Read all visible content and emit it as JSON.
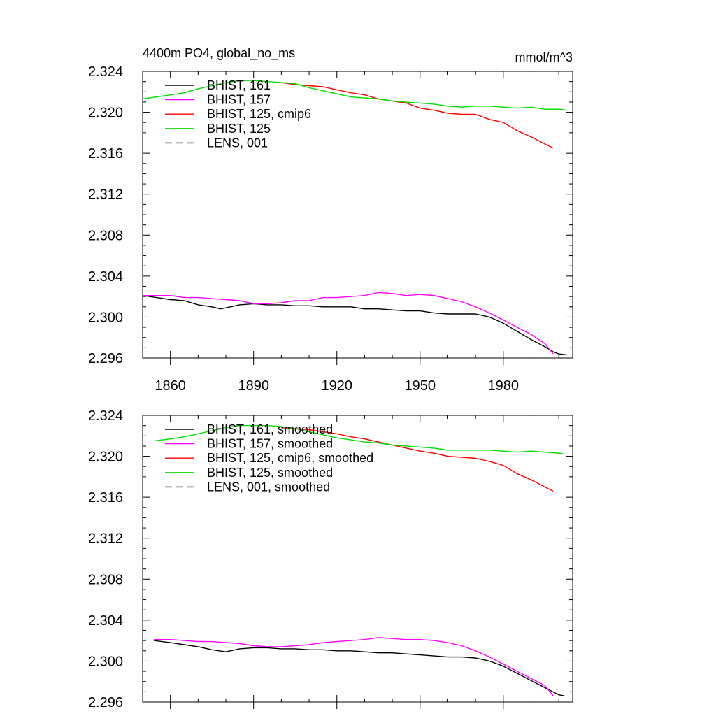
{
  "colors": {
    "black": "#000000",
    "magenta": "#ff00ff",
    "red": "#ff0000",
    "green": "#00dd00"
  },
  "chart_data": [
    {
      "type": "line",
      "title": "4400m PO4, global_no_ms",
      "units": "mmol/m^3",
      "xlim": [
        1850,
        2005
      ],
      "ylim": [
        2.296,
        2.324
      ],
      "x_ticks": [
        "1860",
        "1890",
        "1920",
        "1950",
        "1980"
      ],
      "y_ticks": [
        "2.324",
        "2.320",
        "2.316",
        "2.312",
        "2.308",
        "2.304",
        "2.300",
        "2.296"
      ],
      "legend_position": "top-left",
      "series": [
        {
          "name": "BHIST, 161",
          "color": "#000000",
          "dash": "solid",
          "points": [
            [
              1850,
              2.3021
            ],
            [
              1855,
              2.3019
            ],
            [
              1860,
              2.3017
            ],
            [
              1865,
              2.3016
            ],
            [
              1870,
              2.3012
            ],
            [
              1875,
              2.301
            ],
            [
              1878,
              2.3008
            ],
            [
              1880,
              2.3009
            ],
            [
              1885,
              2.3012
            ],
            [
              1890,
              2.3013
            ],
            [
              1895,
              2.3012
            ],
            [
              1900,
              2.3012
            ],
            [
              1905,
              2.3011
            ],
            [
              1910,
              2.3011
            ],
            [
              1915,
              2.301
            ],
            [
              1920,
              2.301
            ],
            [
              1925,
              2.301
            ],
            [
              1930,
              2.3008
            ],
            [
              1935,
              2.3008
            ],
            [
              1940,
              2.3007
            ],
            [
              1945,
              2.3006
            ],
            [
              1950,
              2.3006
            ],
            [
              1955,
              2.3004
            ],
            [
              1960,
              2.3003
            ],
            [
              1965,
              2.3003
            ],
            [
              1970,
              2.3003
            ],
            [
              1975,
              2.3
            ],
            [
              1980,
              2.2994
            ],
            [
              1985,
              2.2986
            ],
            [
              1990,
              2.2978
            ],
            [
              1995,
              2.2971
            ],
            [
              1998,
              2.2966
            ],
            [
              2000,
              2.2964
            ],
            [
              2003,
              2.2963
            ]
          ]
        },
        {
          "name": "BHIST, 157",
          "color": "#ff00ff",
          "dash": "solid",
          "points": [
            [
              1850,
              2.3021
            ],
            [
              1855,
              2.3021
            ],
            [
              1860,
              2.3021
            ],
            [
              1865,
              2.3019
            ],
            [
              1870,
              2.3019
            ],
            [
              1875,
              2.3018
            ],
            [
              1880,
              2.3017
            ],
            [
              1885,
              2.3016
            ],
            [
              1890,
              2.3013
            ],
            [
              1895,
              2.3013
            ],
            [
              1900,
              2.3014
            ],
            [
              1905,
              2.3016
            ],
            [
              1910,
              2.3016
            ],
            [
              1915,
              2.3019
            ],
            [
              1920,
              2.3019
            ],
            [
              1925,
              2.302
            ],
            [
              1930,
              2.3021
            ],
            [
              1935,
              2.3024
            ],
            [
              1940,
              2.3023
            ],
            [
              1945,
              2.3021
            ],
            [
              1950,
              2.3022
            ],
            [
              1955,
              2.3021
            ],
            [
              1960,
              2.3018
            ],
            [
              1965,
              2.3015
            ],
            [
              1970,
              2.301
            ],
            [
              1975,
              2.3004
            ],
            [
              1980,
              2.2997
            ],
            [
              1985,
              2.299
            ],
            [
              1990,
              2.2983
            ],
            [
              1995,
              2.2974
            ],
            [
              1998,
              2.2964
            ]
          ]
        },
        {
          "name": "BHIST, 125, cmip6",
          "color": "#ff0000",
          "dash": "solid",
          "points": [
            [
              1900,
              2.3229
            ],
            [
              1905,
              2.3227
            ],
            [
              1910,
              2.3226
            ],
            [
              1915,
              2.3225
            ],
            [
              1920,
              2.3222
            ],
            [
              1925,
              2.3219
            ],
            [
              1930,
              2.3217
            ],
            [
              1935,
              2.3213
            ],
            [
              1940,
              2.3211
            ],
            [
              1945,
              2.3209
            ],
            [
              1950,
              2.3204
            ],
            [
              1955,
              2.3202
            ],
            [
              1960,
              2.3199
            ],
            [
              1965,
              2.3198
            ],
            [
              1970,
              2.3198
            ],
            [
              1975,
              2.3193
            ],
            [
              1980,
              2.319
            ],
            [
              1985,
              2.3182
            ],
            [
              1990,
              2.3176
            ],
            [
              1995,
              2.3169
            ],
            [
              1998,
              2.3165
            ]
          ]
        },
        {
          "name": "BHIST, 125",
          "color": "#00dd00",
          "dash": "solid",
          "points": [
            [
              1850,
              2.3213
            ],
            [
              1855,
              2.3215
            ],
            [
              1860,
              2.3217
            ],
            [
              1865,
              2.3219
            ],
            [
              1870,
              2.3223
            ],
            [
              1875,
              2.3226
            ],
            [
              1880,
              2.3229
            ],
            [
              1885,
              2.3231
            ],
            [
              1890,
              2.3231
            ],
            [
              1895,
              2.323
            ],
            [
              1900,
              2.3229
            ],
            [
              1905,
              2.3228
            ],
            [
              1910,
              2.3224
            ],
            [
              1915,
              2.3221
            ],
            [
              1920,
              2.3218
            ],
            [
              1925,
              2.3215
            ],
            [
              1930,
              2.3214
            ],
            [
              1935,
              2.3213
            ],
            [
              1940,
              2.3211
            ],
            [
              1945,
              2.321
            ],
            [
              1950,
              2.3209
            ],
            [
              1955,
              2.3208
            ],
            [
              1960,
              2.3206
            ],
            [
              1965,
              2.3205
            ],
            [
              1970,
              2.3206
            ],
            [
              1975,
              2.3206
            ],
            [
              1980,
              2.3205
            ],
            [
              1985,
              2.3204
            ],
            [
              1990,
              2.3205
            ],
            [
              1995,
              2.3203
            ],
            [
              2000,
              2.3203
            ],
            [
              2003,
              2.3202
            ]
          ]
        },
        {
          "name": "LENS, 001",
          "color": "#000000",
          "dash": "dashed",
          "points": []
        }
      ]
    },
    {
      "type": "line",
      "title": "",
      "units": "",
      "xlim": [
        1850,
        2005
      ],
      "ylim": [
        2.296,
        2.324
      ],
      "x_ticks": [],
      "y_ticks": [
        "2.324",
        "2.320",
        "2.316",
        "2.312",
        "2.308",
        "2.304",
        "2.300",
        "2.296"
      ],
      "legend_position": "top-left",
      "series": [
        {
          "name": "BHIST, 161, smoothed",
          "color": "#000000",
          "dash": "solid",
          "points": [
            [
              1854,
              2.302
            ],
            [
              1860,
              2.3018
            ],
            [
              1865,
              2.3016
            ],
            [
              1870,
              2.3014
            ],
            [
              1875,
              2.3011
            ],
            [
              1880,
              2.3009
            ],
            [
              1885,
              2.3012
            ],
            [
              1890,
              2.3013
            ],
            [
              1895,
              2.3013
            ],
            [
              1900,
              2.3012
            ],
            [
              1905,
              2.3012
            ],
            [
              1910,
              2.3011
            ],
            [
              1915,
              2.3011
            ],
            [
              1920,
              2.301
            ],
            [
              1925,
              2.301
            ],
            [
              1930,
              2.3009
            ],
            [
              1935,
              2.3008
            ],
            [
              1940,
              2.3008
            ],
            [
              1945,
              2.3007
            ],
            [
              1950,
              2.3006
            ],
            [
              1955,
              2.3005
            ],
            [
              1960,
              2.3004
            ],
            [
              1965,
              2.3004
            ],
            [
              1970,
              2.3003
            ],
            [
              1975,
              2.3
            ],
            [
              1980,
              2.2995
            ],
            [
              1985,
              2.2988
            ],
            [
              1990,
              2.2981
            ],
            [
              1995,
              2.2974
            ],
            [
              2000,
              2.2967
            ],
            [
              2002,
              2.2966
            ]
          ]
        },
        {
          "name": "BHIST, 157, smoothed",
          "color": "#ff00ff",
          "dash": "solid",
          "points": [
            [
              1854,
              2.3021
            ],
            [
              1860,
              2.3021
            ],
            [
              1865,
              2.302
            ],
            [
              1870,
              2.3019
            ],
            [
              1875,
              2.3019
            ],
            [
              1880,
              2.3018
            ],
            [
              1885,
              2.3017
            ],
            [
              1890,
              2.3015
            ],
            [
              1895,
              2.3014
            ],
            [
              1900,
              2.3014
            ],
            [
              1905,
              2.3015
            ],
            [
              1910,
              2.3016
            ],
            [
              1915,
              2.3018
            ],
            [
              1920,
              2.3019
            ],
            [
              1925,
              2.302
            ],
            [
              1930,
              2.3021
            ],
            [
              1935,
              2.3023
            ],
            [
              1940,
              2.3022
            ],
            [
              1945,
              2.3021
            ],
            [
              1950,
              2.3021
            ],
            [
              1955,
              2.302
            ],
            [
              1960,
              2.3018
            ],
            [
              1965,
              2.3015
            ],
            [
              1970,
              2.301
            ],
            [
              1975,
              2.3004
            ],
            [
              1980,
              2.2997
            ],
            [
              1985,
              2.299
            ],
            [
              1990,
              2.2983
            ],
            [
              1995,
              2.2976
            ],
            [
              1998,
              2.2966
            ]
          ]
        },
        {
          "name": "BHIST, 125, cmip6, smoothed",
          "color": "#ff0000",
          "dash": "solid",
          "points": [
            [
              1900,
              2.3228
            ],
            [
              1905,
              2.3227
            ],
            [
              1910,
              2.3226
            ],
            [
              1915,
              2.3224
            ],
            [
              1920,
              2.3222
            ],
            [
              1925,
              2.3219
            ],
            [
              1930,
              2.3217
            ],
            [
              1935,
              2.3214
            ],
            [
              1940,
              2.3211
            ],
            [
              1945,
              2.3208
            ],
            [
              1950,
              2.3205
            ],
            [
              1955,
              2.3203
            ],
            [
              1960,
              2.32
            ],
            [
              1965,
              2.3199
            ],
            [
              1970,
              2.3198
            ],
            [
              1975,
              2.3195
            ],
            [
              1980,
              2.3191
            ],
            [
              1985,
              2.3183
            ],
            [
              1990,
              2.3177
            ],
            [
              1995,
              2.317
            ],
            [
              1998,
              2.3166
            ]
          ]
        },
        {
          "name": "BHIST, 125, smoothed",
          "color": "#00dd00",
          "dash": "solid",
          "points": [
            [
              1854,
              2.3215
            ],
            [
              1860,
              2.3217
            ],
            [
              1865,
              2.3219
            ],
            [
              1870,
              2.3222
            ],
            [
              1875,
              2.3225
            ],
            [
              1880,
              2.3228
            ],
            [
              1885,
              2.323
            ],
            [
              1890,
              2.323
            ],
            [
              1895,
              2.323
            ],
            [
              1900,
              2.3229
            ],
            [
              1905,
              2.3227
            ],
            [
              1910,
              2.3224
            ],
            [
              1915,
              2.3221
            ],
            [
              1920,
              2.3218
            ],
            [
              1925,
              2.3216
            ],
            [
              1930,
              2.3214
            ],
            [
              1935,
              2.3213
            ],
            [
              1940,
              2.3211
            ],
            [
              1945,
              2.321
            ],
            [
              1950,
              2.3209
            ],
            [
              1955,
              2.3208
            ],
            [
              1960,
              2.3206
            ],
            [
              1965,
              2.3206
            ],
            [
              1970,
              2.3206
            ],
            [
              1975,
              2.3206
            ],
            [
              1980,
              2.3205
            ],
            [
              1985,
              2.3204
            ],
            [
              1990,
              2.3205
            ],
            [
              1995,
              2.3204
            ],
            [
              2000,
              2.3203
            ],
            [
              2002,
              2.3202
            ]
          ]
        },
        {
          "name": "LENS, 001, smoothed",
          "color": "#000000",
          "dash": "dashed",
          "points": []
        }
      ]
    }
  ]
}
